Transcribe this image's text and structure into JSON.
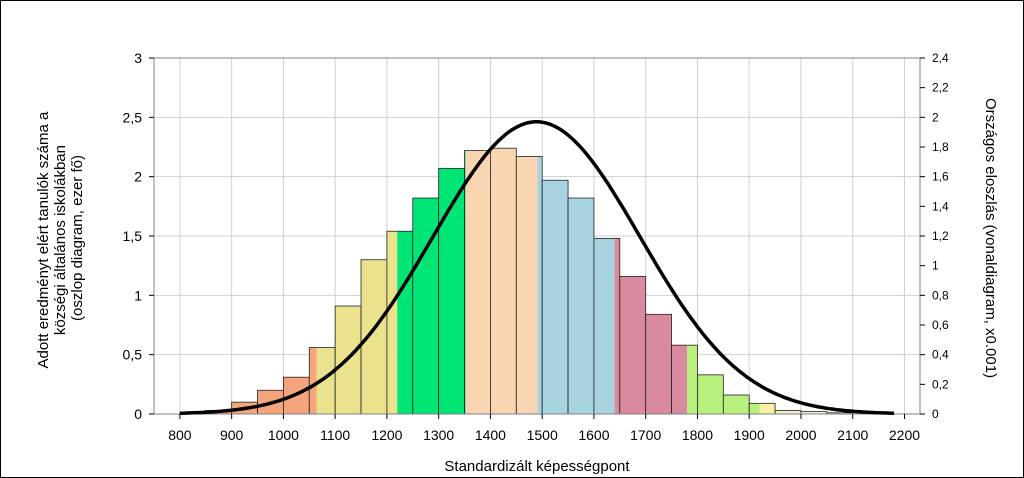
{
  "chart_data": {
    "type": "bar",
    "xlabel": "Standardizált képességpont",
    "ylabel_lines": [
      "Adott eredményt elért tanulók száma a",
      "községi általános iskolákban",
      "(oszlop diagram, ezer fő)"
    ],
    "y2label": "Országos eloszlás (vonaldiagram, x0.001)",
    "xlim": [
      750,
      2230
    ],
    "ylim": [
      0,
      3
    ],
    "y2lim": [
      0,
      2.4
    ],
    "x_ticks": [
      800,
      900,
      1000,
      1100,
      1200,
      1300,
      1400,
      1500,
      1600,
      1700,
      1800,
      1900,
      2000,
      2100,
      2200
    ],
    "y_ticks": [
      0,
      0.5,
      1,
      1.5,
      2,
      2.5,
      3
    ],
    "y_tick_labels": [
      "0",
      "0,5",
      "1",
      "1,5",
      "2",
      "2,5",
      "3"
    ],
    "y2_ticks": [
      0,
      0.2,
      0.4,
      0.6,
      0.8,
      1,
      1.2,
      1.4,
      1.6,
      1.8,
      2,
      2.2,
      2.4
    ],
    "y2_tick_labels": [
      "0",
      "0,2",
      "0,4",
      "0,6",
      "0,8",
      "1",
      "1,2",
      "1,4",
      "1,6",
      "1,8",
      "2",
      "2,2",
      "2,4"
    ],
    "bin_width": 50,
    "bars": [
      {
        "start": 750,
        "value": 0.0
      },
      {
        "start": 800,
        "value": 0.01
      },
      {
        "start": 850,
        "value": 0.03
      },
      {
        "start": 900,
        "value": 0.1
      },
      {
        "start": 950,
        "value": 0.2
      },
      {
        "start": 1000,
        "value": 0.31
      },
      {
        "start": 1050,
        "value": 0.56
      },
      {
        "start": 1100,
        "value": 0.91
      },
      {
        "start": 1150,
        "value": 1.3
      },
      {
        "start": 1200,
        "value": 1.54
      },
      {
        "start": 1250,
        "value": 1.82
      },
      {
        "start": 1300,
        "value": 2.07
      },
      {
        "start": 1350,
        "value": 2.22
      },
      {
        "start": 1400,
        "value": 2.24
      },
      {
        "start": 1450,
        "value": 2.17
      },
      {
        "start": 1500,
        "value": 1.97
      },
      {
        "start": 1550,
        "value": 1.82
      },
      {
        "start": 1600,
        "value": 1.48
      },
      {
        "start": 1650,
        "value": 1.16
      },
      {
        "start": 1700,
        "value": 0.84
      },
      {
        "start": 1750,
        "value": 0.58
      },
      {
        "start": 1800,
        "value": 0.33
      },
      {
        "start": 1850,
        "value": 0.16
      },
      {
        "start": 1900,
        "value": 0.09
      },
      {
        "start": 1950,
        "value": 0.03
      },
      {
        "start": 2000,
        "value": 0.02
      },
      {
        "start": 2050,
        "value": 0.01
      },
      {
        "start": 2100,
        "value": 0.0
      },
      {
        "start": 2150,
        "value": 0.0
      }
    ],
    "color_bands": [
      {
        "from": 750,
        "to": 1064,
        "color": "#f4a57d"
      },
      {
        "from": 1064,
        "to": 1220,
        "color": "#ebe28e"
      },
      {
        "from": 1220,
        "to": 1352,
        "color": "#00e676"
      },
      {
        "from": 1352,
        "to": 1491,
        "color": "#f9d5b1"
      },
      {
        "from": 1491,
        "to": 1640,
        "color": "#a8d4e2"
      },
      {
        "from": 1640,
        "to": 1780,
        "color": "#d98a9e"
      },
      {
        "from": 1780,
        "to": 1920,
        "color": "#b7f07c"
      },
      {
        "from": 1920,
        "to": 1960,
        "color": "#f5f2a3"
      },
      {
        "from": 1960,
        "to": 2230,
        "color": "#f4eecf"
      }
    ],
    "line_series": {
      "name": "Országos eloszlás",
      "axis": "right",
      "mean": 1489,
      "sd": 200,
      "peak": 1.97,
      "x_from": 800,
      "x_to": 2180
    }
  }
}
